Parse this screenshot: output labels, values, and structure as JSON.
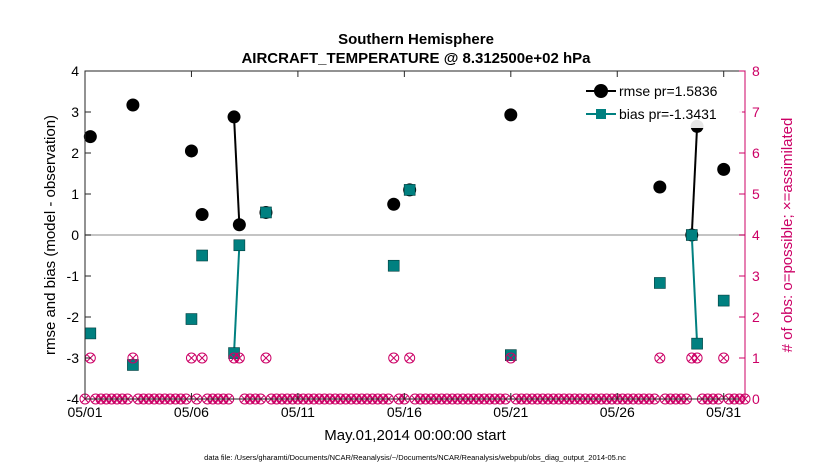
{
  "chart_data": {
    "type": "line",
    "title_line1": "Southern Hemisphere",
    "title_line2": "AIRCRAFT_TEMPERATURE @ 8.312500e+02 hPa",
    "xlabel": "May.01,2014 00:00:00 start",
    "ylabel_left": "rmse and bias (model - observation)",
    "ylabel_right": "# of obs: o=possible; ×=assimilated",
    "footer": "data file: /Users/gharamti/Documents/NCAR/Reanalysis/~/Documents/NCAR/Reanalysis/webpub/obs_diag_output_2014-05.nc",
    "xlim": [
      1,
      32
    ],
    "ylim_left": [
      -4,
      4
    ],
    "ylim_right": [
      0,
      8
    ],
    "x_ticks": [
      1,
      6,
      11,
      16,
      21,
      26,
      31
    ],
    "x_tick_labels": [
      "05/01",
      "05/06",
      "05/11",
      "05/16",
      "05/21",
      "05/26",
      "05/31"
    ],
    "y_ticks_left": [
      -4,
      -3,
      -2,
      -1,
      0,
      1,
      2,
      3,
      4
    ],
    "y_ticks_right": [
      0,
      1,
      2,
      3,
      4,
      5,
      6,
      7,
      8
    ],
    "grid": false,
    "legend_position": "top-right",
    "colors": {
      "rmse": "#000000",
      "bias": "#008080",
      "obs_count": "#cc0066",
      "zero_line": "#b0b0b0"
    },
    "series": [
      {
        "name": "rmse pr=1.5836",
        "key": "rmse",
        "marker": "circle",
        "points": [
          [
            1.25,
            2.4
          ],
          [
            3.25,
            3.17
          ],
          [
            6.0,
            2.05
          ],
          [
            6.5,
            0.5
          ],
          [
            8.0,
            2.88
          ],
          [
            8.25,
            0.25
          ],
          [
            9.5,
            0.55
          ],
          [
            15.5,
            0.75
          ],
          [
            16.25,
            1.1
          ],
          [
            21.0,
            2.93
          ],
          [
            28.0,
            1.17
          ],
          [
            29.5,
            0.0
          ],
          [
            29.75,
            2.65
          ],
          [
            31.0,
            1.6
          ]
        ]
      },
      {
        "name": "bias pr=-1.3431",
        "key": "bias",
        "marker": "square",
        "points": [
          [
            1.25,
            -2.4
          ],
          [
            3.25,
            -3.17
          ],
          [
            6.0,
            -2.05
          ],
          [
            6.5,
            -0.5
          ],
          [
            8.0,
            -2.88
          ],
          [
            8.25,
            -0.25
          ],
          [
            9.5,
            0.55
          ],
          [
            15.5,
            -0.75
          ],
          [
            16.25,
            1.1
          ],
          [
            21.0,
            -2.93
          ],
          [
            28.0,
            -1.17
          ],
          [
            29.5,
            0.0
          ],
          [
            29.75,
            -2.65
          ],
          [
            31.0,
            -1.6
          ]
        ]
      }
    ],
    "obs_counts_nonzero": [
      [
        1.25,
        1
      ],
      [
        3.25,
        1
      ],
      [
        6.0,
        1
      ],
      [
        6.5,
        1
      ],
      [
        8.0,
        1
      ],
      [
        8.25,
        1
      ],
      [
        9.5,
        1
      ],
      [
        15.5,
        1
      ],
      [
        16.25,
        1
      ],
      [
        21.0,
        1
      ],
      [
        28.0,
        1
      ],
      [
        29.5,
        1
      ],
      [
        29.75,
        1
      ],
      [
        31.0,
        1
      ]
    ],
    "obs_counts_zero_start": 1.0,
    "obs_counts_zero_end": 32.0,
    "obs_counts_zero_step": 0.25
  }
}
